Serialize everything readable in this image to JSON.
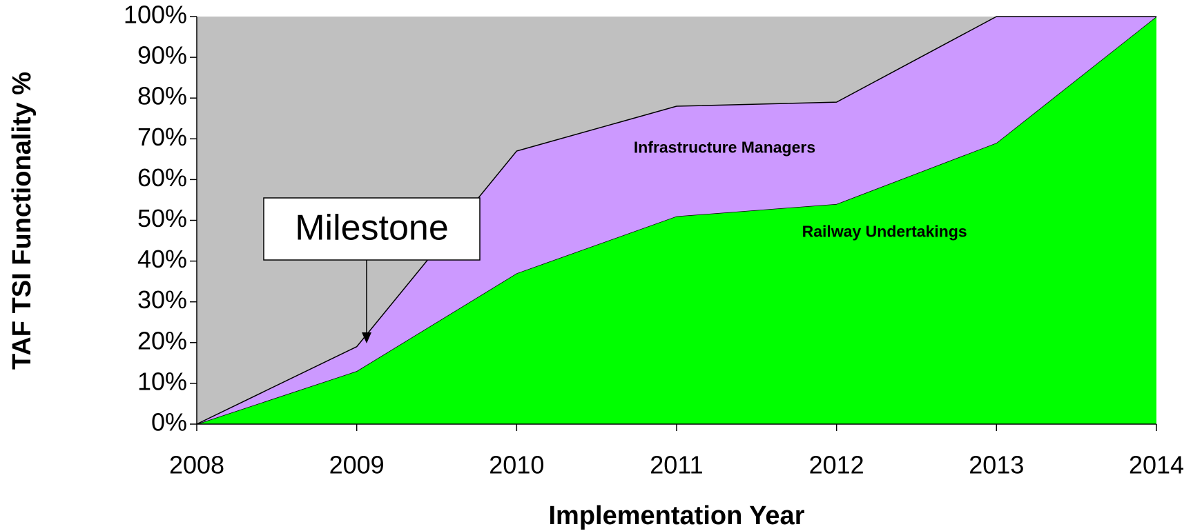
{
  "chart_data": {
    "type": "stacked_area",
    "x_label": "Implementation Year",
    "y_label": "TAF TSI Functionality %",
    "x": [
      2008,
      2009,
      2010,
      2011,
      2012,
      2013,
      2014
    ],
    "xlim": [
      2008,
      2014
    ],
    "xticks": [
      2008,
      2009,
      2010,
      2011,
      2012,
      2013,
      2014
    ],
    "ylim": [
      0,
      100
    ],
    "yticks": [
      {
        "value": 0,
        "label": "0%"
      },
      {
        "value": 10,
        "label": "10%"
      },
      {
        "value": 20,
        "label": "20%"
      },
      {
        "value": 30,
        "label": "30%"
      },
      {
        "value": 40,
        "label": "40%"
      },
      {
        "value": 50,
        "label": "50%"
      },
      {
        "value": 60,
        "label": "60%"
      },
      {
        "value": 70,
        "label": "70%"
      },
      {
        "value": 80,
        "label": "80%"
      },
      {
        "value": 90,
        "label": "90%"
      },
      {
        "value": 100,
        "label": "100%"
      }
    ],
    "background": "#c0c0c0",
    "series": [
      {
        "name": "Railway Undertakings",
        "color": "#00ff00",
        "values": [
          0,
          13,
          37,
          51,
          54,
          69,
          100
        ]
      },
      {
        "name": "Infrastructure Managers",
        "color": "#cc99ff",
        "values": [
          0,
          6,
          30,
          27,
          25,
          31,
          0
        ]
      }
    ],
    "annotations": [
      {
        "text": "Milestone"
      }
    ]
  }
}
